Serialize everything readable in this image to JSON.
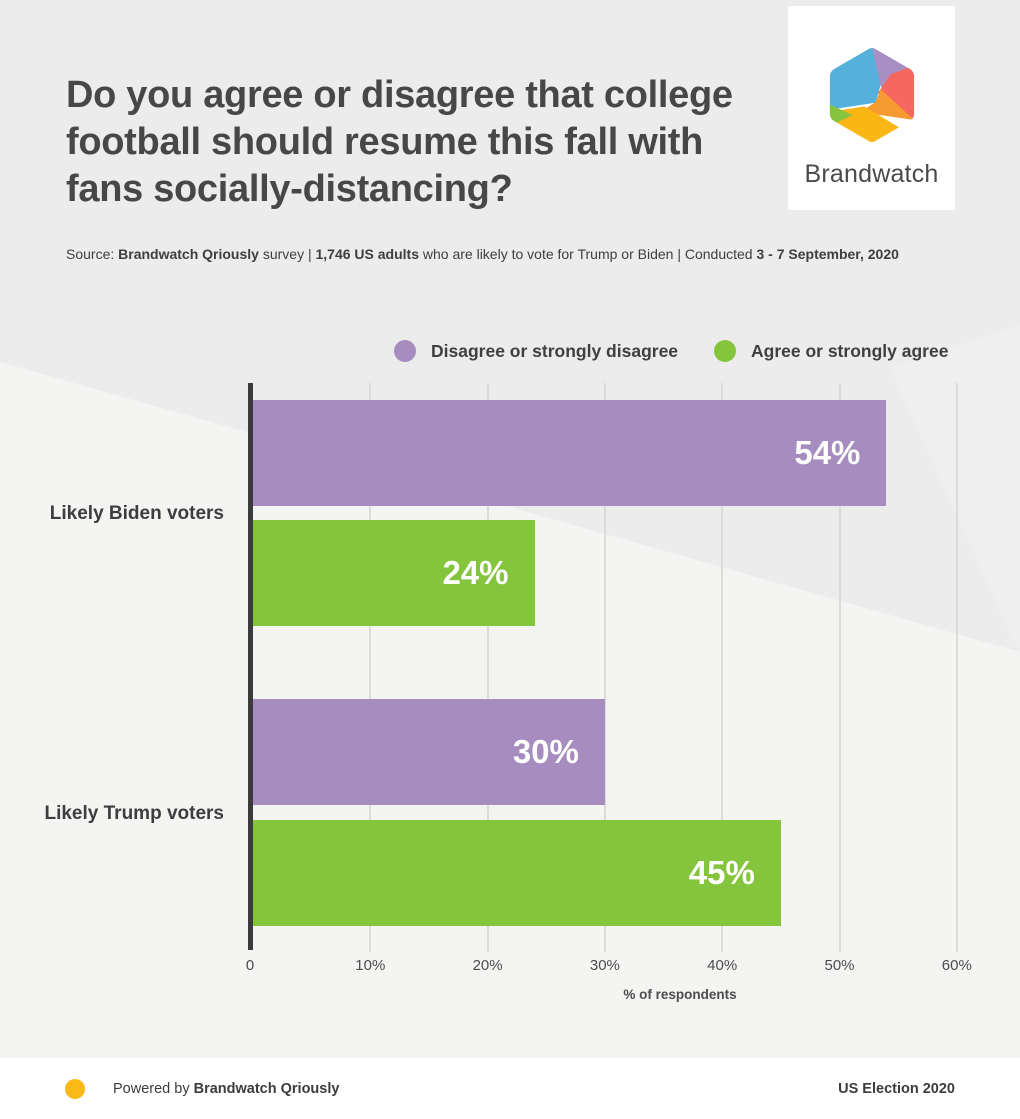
{
  "header": {
    "title": "Do you agree or disagree that college football should resume this fall with fans socially-distancing?",
    "source_segments": [
      {
        "text": "Source: ",
        "bold": false
      },
      {
        "text": "Brandwatch Qriously",
        "bold": true
      },
      {
        "text": " survey | ",
        "bold": false
      },
      {
        "text": "1,746 US adults",
        "bold": true
      },
      {
        "text": " who are likely to vote for Trump or Biden  | Conducted ",
        "bold": false
      },
      {
        "text": "3 - 7 September, 2020",
        "bold": true
      }
    ],
    "logo_brand": "Brandwatch"
  },
  "chart_data": {
    "type": "bar",
    "orientation": "horizontal",
    "title": "Do you agree or disagree that college football should resume this fall with fans socially-distancing?",
    "categories": [
      "Likely Biden voters",
      "Likely Trump voters"
    ],
    "series": [
      {
        "name": "Disagree or strongly disagree",
        "color": "#a78cbf",
        "values": [
          54,
          30
        ]
      },
      {
        "name": "Agree or strongly agree",
        "color": "#85c43d",
        "values": [
          24,
          45
        ]
      }
    ],
    "value_labels": [
      [
        "54%",
        "30%"
      ],
      [
        "24%",
        "45%"
      ]
    ],
    "xlabel": "% of respondents",
    "ylabel": "",
    "xlim": [
      0,
      60
    ],
    "xticks": [
      {
        "value": 0,
        "label": "0"
      },
      {
        "value": 10,
        "label": "10%"
      },
      {
        "value": 20,
        "label": "20%"
      },
      {
        "value": 30,
        "label": "30%"
      },
      {
        "value": 40,
        "label": "40%"
      },
      {
        "value": 50,
        "label": "50%"
      },
      {
        "value": 60,
        "label": "60%"
      }
    ],
    "grid": true,
    "legend_position": "top"
  },
  "footer": {
    "powered_prefix": "Powered by ",
    "powered_brand": "Brandwatch Qriously",
    "right_text": "US Election 2020",
    "dot_color": "#fbb917"
  },
  "colors": {
    "background": "#edecec",
    "background_light": "#f4f4f3",
    "axis": "#3b3b3b",
    "gridline": "#dbdbda",
    "bar_purple": "#a78cbf",
    "bar_green": "#85c43d",
    "text_dark": "#474747",
    "logo_blue": "#55b0dc",
    "logo_purple": "#a78fc3",
    "logo_coral": "#f6685f",
    "logo_orange": "#f79a2f",
    "logo_yellow": "#fbb615",
    "logo_green": "#86c440"
  }
}
